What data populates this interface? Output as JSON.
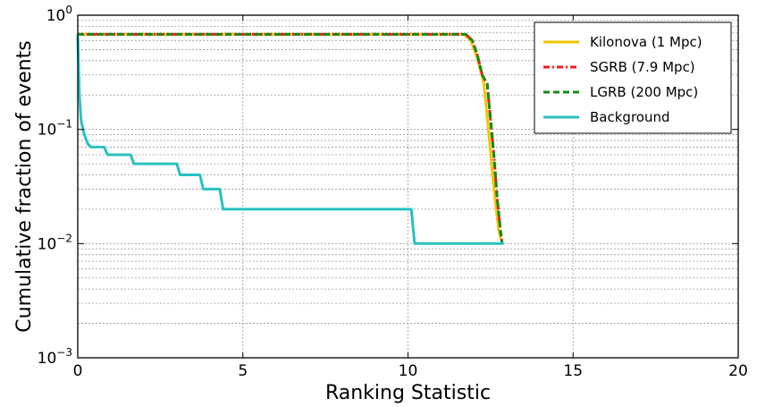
{
  "chart_data": {
    "type": "line",
    "title": "",
    "xlabel": "Ranking Statistic",
    "ylabel": "Cumulative fraction of events",
    "xlim": [
      0,
      20
    ],
    "ylim": [
      0.001,
      1
    ],
    "yscale": "log",
    "grid": true,
    "legend_position": "top-right",
    "x_ticks": [
      {
        "value": 0,
        "label": "0"
      },
      {
        "value": 5,
        "label": "5"
      },
      {
        "value": 10,
        "label": "10"
      },
      {
        "value": 15,
        "label": "15"
      },
      {
        "value": 20,
        "label": "20"
      }
    ],
    "y_ticks": [
      {
        "value": 1,
        "base": "10",
        "exp": "0"
      },
      {
        "value": 0.1,
        "base": "10",
        "exp": "−1"
      },
      {
        "value": 0.01,
        "base": "10",
        "exp": "−2"
      },
      {
        "value": 0.001,
        "base": "10",
        "exp": "−3"
      }
    ],
    "series": [
      {
        "name": "Kilonova (1 Mpc)",
        "color": "#f5c400",
        "style": "solid",
        "x": [
          0,
          11.7,
          11.9,
          12.1,
          12.3,
          12.45,
          12.6,
          12.75,
          12.85
        ],
        "y": [
          0.68,
          0.68,
          0.6,
          0.42,
          0.25,
          0.09,
          0.03,
          0.013,
          0.01
        ]
      },
      {
        "name": "SGRB (7.9 Mpc)",
        "color": "#ee1c1c",
        "style": "dashdot",
        "x": [
          0,
          11.75,
          11.95,
          12.1,
          12.25,
          12.4,
          12.5,
          12.6,
          12.7,
          12.8,
          12.85
        ],
        "y": [
          0.68,
          0.68,
          0.6,
          0.45,
          0.3,
          0.25,
          0.12,
          0.06,
          0.025,
          0.013,
          0.01
        ]
      },
      {
        "name": "LGRB (200 Mpc)",
        "color": "#178a17",
        "style": "dashed",
        "x": [
          0,
          11.75,
          11.95,
          12.1,
          12.25,
          12.4,
          12.5,
          12.6,
          12.7,
          12.8,
          12.85
        ],
        "y": [
          0.68,
          0.68,
          0.6,
          0.45,
          0.3,
          0.25,
          0.12,
          0.06,
          0.025,
          0.013,
          0.01
        ]
      },
      {
        "name": "Background",
        "color": "#2ac0c0",
        "style": "solid",
        "x": [
          0,
          0.05,
          0.1,
          0.2,
          0.3,
          0.4,
          0.5,
          0.8,
          0.9,
          1.0,
          1.6,
          1.7,
          1.8,
          3.0,
          3.1,
          3.2,
          3.7,
          3.8,
          3.9,
          4.3,
          4.4,
          4.5,
          10.1,
          10.2,
          10.3,
          12.9
        ],
        "y": [
          0.68,
          0.2,
          0.12,
          0.09,
          0.075,
          0.07,
          0.07,
          0.07,
          0.06,
          0.06,
          0.06,
          0.05,
          0.05,
          0.05,
          0.04,
          0.04,
          0.04,
          0.03,
          0.03,
          0.03,
          0.02,
          0.02,
          0.02,
          0.01,
          0.01,
          0.01
        ]
      }
    ]
  }
}
